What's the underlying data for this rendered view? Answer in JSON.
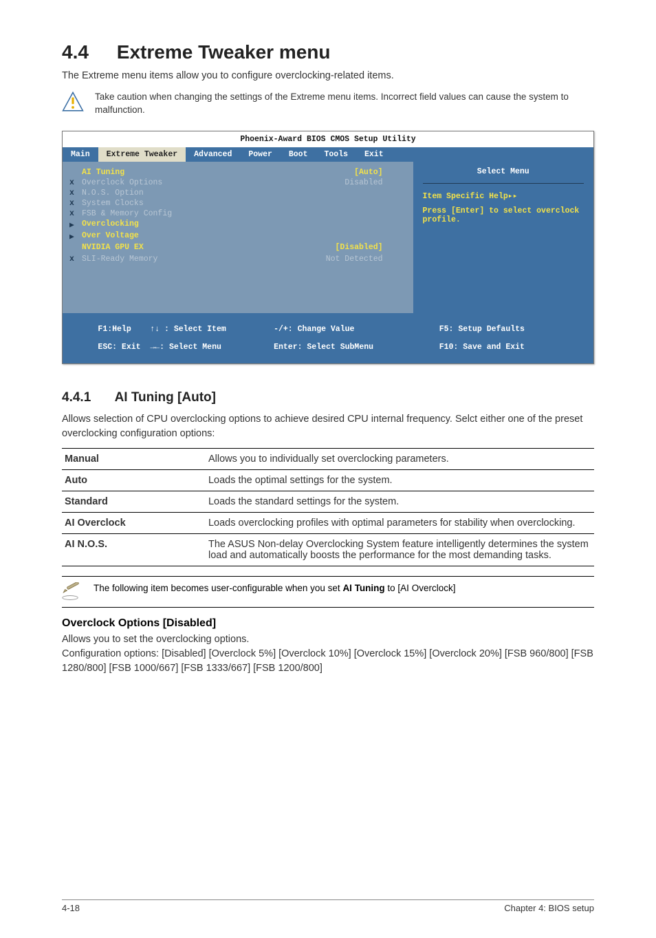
{
  "section": {
    "number": "4.4",
    "title": "Extreme Tweaker menu",
    "intro": "The Extreme menu items allow you to configure overclocking-related items."
  },
  "caution": {
    "text": "Take caution when changing the settings of the Extreme menu items. Incorrect field values can cause the system to malfunction."
  },
  "bios": {
    "title": "Phoenix-Award BIOS CMOS Setup Utility",
    "tabs": [
      "Main",
      "Extreme Tweaker",
      "Advanced",
      "Power",
      "Boot",
      "Tools",
      "Exit"
    ],
    "active_tab": "Extreme Tweaker",
    "left_items": [
      {
        "marker": "",
        "label": "AI Tuning",
        "enabled": true,
        "value": "[Auto]",
        "value_enabled": true
      },
      {
        "marker": "x",
        "label": "Overclock Options",
        "enabled": false,
        "value": "Disabled",
        "value_enabled": false
      },
      {
        "marker": "x",
        "label": "N.O.S. Option",
        "enabled": false,
        "value": "",
        "value_enabled": false
      },
      {
        "marker": "x",
        "label": "System Clocks",
        "enabled": false,
        "value": "",
        "value_enabled": false
      },
      {
        "marker": "x",
        "label": "FSB & Memory Config",
        "enabled": false,
        "value": "",
        "value_enabled": false
      },
      {
        "marker": "▶",
        "label": "Overclocking",
        "enabled": true,
        "value": "",
        "value_enabled": false
      },
      {
        "marker": "▶",
        "label": "Over Voltage",
        "enabled": true,
        "value": "",
        "value_enabled": false
      },
      {
        "marker": "",
        "label": "NVIDIA GPU EX",
        "enabled": true,
        "value": "[Disabled]",
        "value_enabled": true
      },
      {
        "marker": "",
        "label": "",
        "enabled": false,
        "value": "",
        "value_enabled": false
      },
      {
        "marker": "x",
        "label": "SLI-Ready Memory",
        "enabled": false,
        "value": "Not Detected",
        "value_enabled": false
      }
    ],
    "right": {
      "select_menu": "Select Menu",
      "help_label": "Item Specific Help▸▸",
      "help_text": "Press [Enter] to select overclock profile."
    },
    "footer": {
      "f1": "F1:Help",
      "select_item": "↑↓ : Select Item",
      "esc": "ESC: Exit",
      "select_menu": "→←: Select Menu",
      "change": "-/+: Change Value",
      "enter": "Enter: Select SubMenu",
      "f5": "F5: Setup Defaults",
      "f10": "F10: Save and Exit"
    },
    "colors": {
      "tab_bg": "#3e70a2",
      "active_tab_bg": "#e0ddc8",
      "left_bg": "#7d99b4",
      "right_bg": "#3e70a2",
      "enabled_text": "#f3e24a",
      "disabled_text": "#b9c7d5",
      "marker_color": "#203a54"
    }
  },
  "sub": {
    "number": "4.4.1",
    "title": "AI Tuning [Auto]",
    "intro": "Allows selection of CPU overclocking options to achieve desired CPU internal frequency. Selct either one of the preset overclocking configuration options:"
  },
  "options": [
    {
      "name": "Manual",
      "desc": "Allows you to individually set overclocking parameters."
    },
    {
      "name": "Auto",
      "desc": "Loads the optimal settings for the system."
    },
    {
      "name": "Standard",
      "desc": "Loads the standard settings for the system."
    },
    {
      "name": "AI Overclock",
      "desc": "Loads overclocking profiles with optimal parameters for stability when overclocking."
    },
    {
      "name": "AI N.O.S.",
      "desc": "The ASUS Non-delay Overclocking System feature intelligently determines the system load and automatically boosts the performance for the most demanding tasks."
    }
  ],
  "note": {
    "text_before": "The following item becomes user-configurable when you set ",
    "bold": "AI Tuning",
    "text_after": " to [AI Overclock]"
  },
  "overclock": {
    "heading": "Overclock Options [Disabled]",
    "line1": "Allows you to set the overclocking options.",
    "line2": "Configuration options: [Disabled] [Overclock 5%] [Overclock 10%] [Overclock 15%] [Overclock 20%] [FSB 960/800] [FSB 1280/800] [FSB 1000/667] [FSB 1333/667] [FSB 1200/800]"
  },
  "footer": {
    "left": "4-18",
    "right": "Chapter 4: BIOS setup"
  }
}
